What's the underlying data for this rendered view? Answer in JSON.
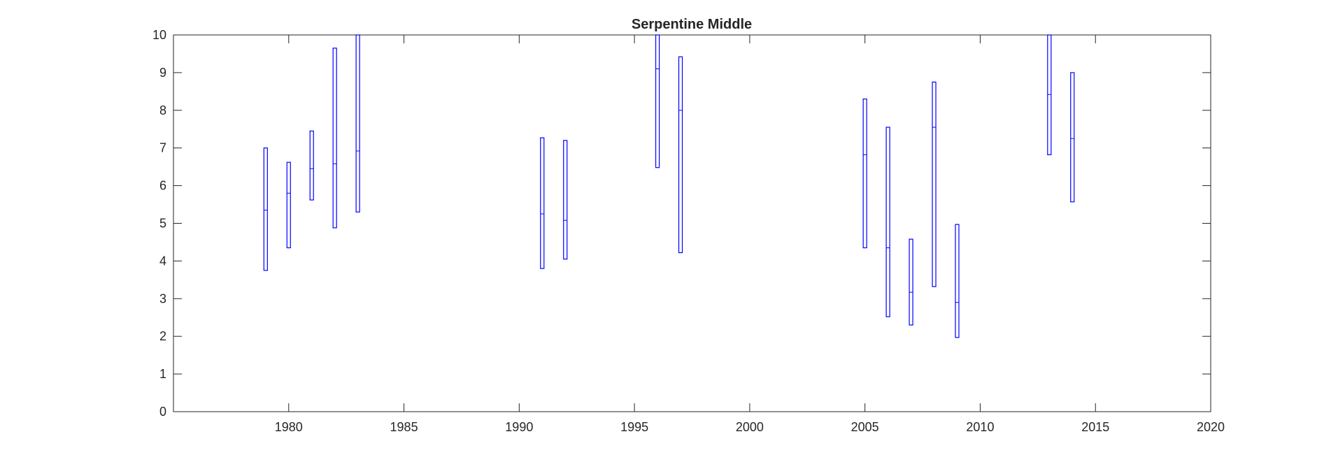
{
  "chart_data": {
    "type": "box",
    "title": "Serpentine Middle",
    "xlabel": "",
    "ylabel": "",
    "xlim": [
      1975,
      2020
    ],
    "ylim": [
      0,
      10
    ],
    "x_ticks": [
      1980,
      1985,
      1990,
      1995,
      2000,
      2005,
      2010,
      2015,
      2020
    ],
    "y_ticks": [
      0,
      1,
      2,
      3,
      4,
      5,
      6,
      7,
      8,
      9,
      10
    ],
    "grid": false,
    "series": [
      {
        "color": "#0000ff",
        "boxes": [
          {
            "x": 1979,
            "low": 3.75,
            "mid": 5.35,
            "high": 7.0
          },
          {
            "x": 1980,
            "low": 4.35,
            "mid": 5.8,
            "high": 6.62
          },
          {
            "x": 1981,
            "low": 5.62,
            "mid": 6.45,
            "high": 7.45
          },
          {
            "x": 1982,
            "low": 4.88,
            "mid": 6.58,
            "high": 9.65
          },
          {
            "x": 1983,
            "low": 5.3,
            "mid": 6.92,
            "high": 10.0
          },
          {
            "x": 1991,
            "low": 3.8,
            "mid": 5.25,
            "high": 7.27
          },
          {
            "x": 1992,
            "low": 4.05,
            "mid": 5.08,
            "high": 7.2
          },
          {
            "x": 1996,
            "low": 6.48,
            "mid": 9.1,
            "high": 10.0
          },
          {
            "x": 1997,
            "low": 4.22,
            "mid": 8.0,
            "high": 9.42
          },
          {
            "x": 2005,
            "low": 4.35,
            "mid": 6.82,
            "high": 8.3
          },
          {
            "x": 2006,
            "low": 2.52,
            "mid": 4.35,
            "high": 7.55
          },
          {
            "x": 2007,
            "low": 2.3,
            "mid": 3.17,
            "high": 4.58
          },
          {
            "x": 2008,
            "low": 3.32,
            "mid": 7.55,
            "high": 8.75
          },
          {
            "x": 2009,
            "low": 1.97,
            "mid": 2.9,
            "high": 4.97
          },
          {
            "x": 2013,
            "low": 6.82,
            "mid": 8.42,
            "high": 10.0
          },
          {
            "x": 2014,
            "low": 5.57,
            "mid": 7.25,
            "high": 9.0
          }
        ]
      }
    ]
  }
}
